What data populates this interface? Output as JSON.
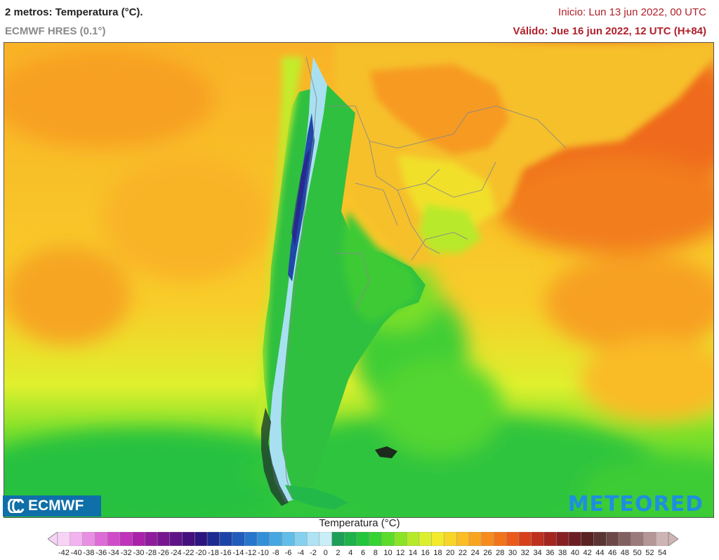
{
  "header": {
    "title": "2 metros: Temperatura (°C).",
    "model": "ECMWF HRES (0.1°)",
    "init": "Inicio: Lun 13 jun 2022, 00 UTC",
    "valid": "Válido: Jue 16 jun 2022, 12 UTC (H+84)"
  },
  "logos": {
    "ecmwf": "ECMWF",
    "meteored": "METEORED"
  },
  "legend": {
    "title": "Temperatura (°C)",
    "labels": [
      "-42",
      "-40",
      "-38",
      "-36",
      "-34",
      "-32",
      "-30",
      "-28",
      "-26",
      "-24",
      "-22",
      "-20",
      "-18",
      "-16",
      "-14",
      "-12",
      "-10",
      "-8",
      "-6",
      "-4",
      "-2",
      "0",
      "2",
      "4",
      "6",
      "8",
      "10",
      "12",
      "14",
      "16",
      "18",
      "20",
      "22",
      "24",
      "26",
      "28",
      "30",
      "32",
      "34",
      "36",
      "38",
      "40",
      "42",
      "44",
      "46",
      "48",
      "50",
      "52",
      "54"
    ],
    "colors": [
      "#f7d3f5",
      "#f2b3ee",
      "#e98fe3",
      "#de6cd6",
      "#d04dc9",
      "#bf34bb",
      "#aa22aa",
      "#8f1c9c",
      "#771690",
      "#5e1486",
      "#45107e",
      "#2d1580",
      "#1c2b92",
      "#1c44a8",
      "#1f5cbc",
      "#2676cc",
      "#3390d8",
      "#47a7e1",
      "#62bde8",
      "#86d1ef",
      "#aee2f4",
      "#c9eef7",
      "#1f9e58",
      "#1fb24a",
      "#22c53c",
      "#36d332",
      "#5cdc2a",
      "#8ae326",
      "#b6e92a",
      "#dcef2e",
      "#f3ea2c",
      "#f8d628",
      "#fabd24",
      "#f9a421",
      "#f68c1e",
      "#f1741c",
      "#ea5a1b",
      "#d8401c",
      "#c0301e",
      "#a42620",
      "#882023",
      "#6c1d24",
      "#5a2222",
      "#5c3434",
      "#6c4848",
      "#826060",
      "#9a7a7a",
      "#b49696",
      "#cfb4b4"
    ]
  }
}
